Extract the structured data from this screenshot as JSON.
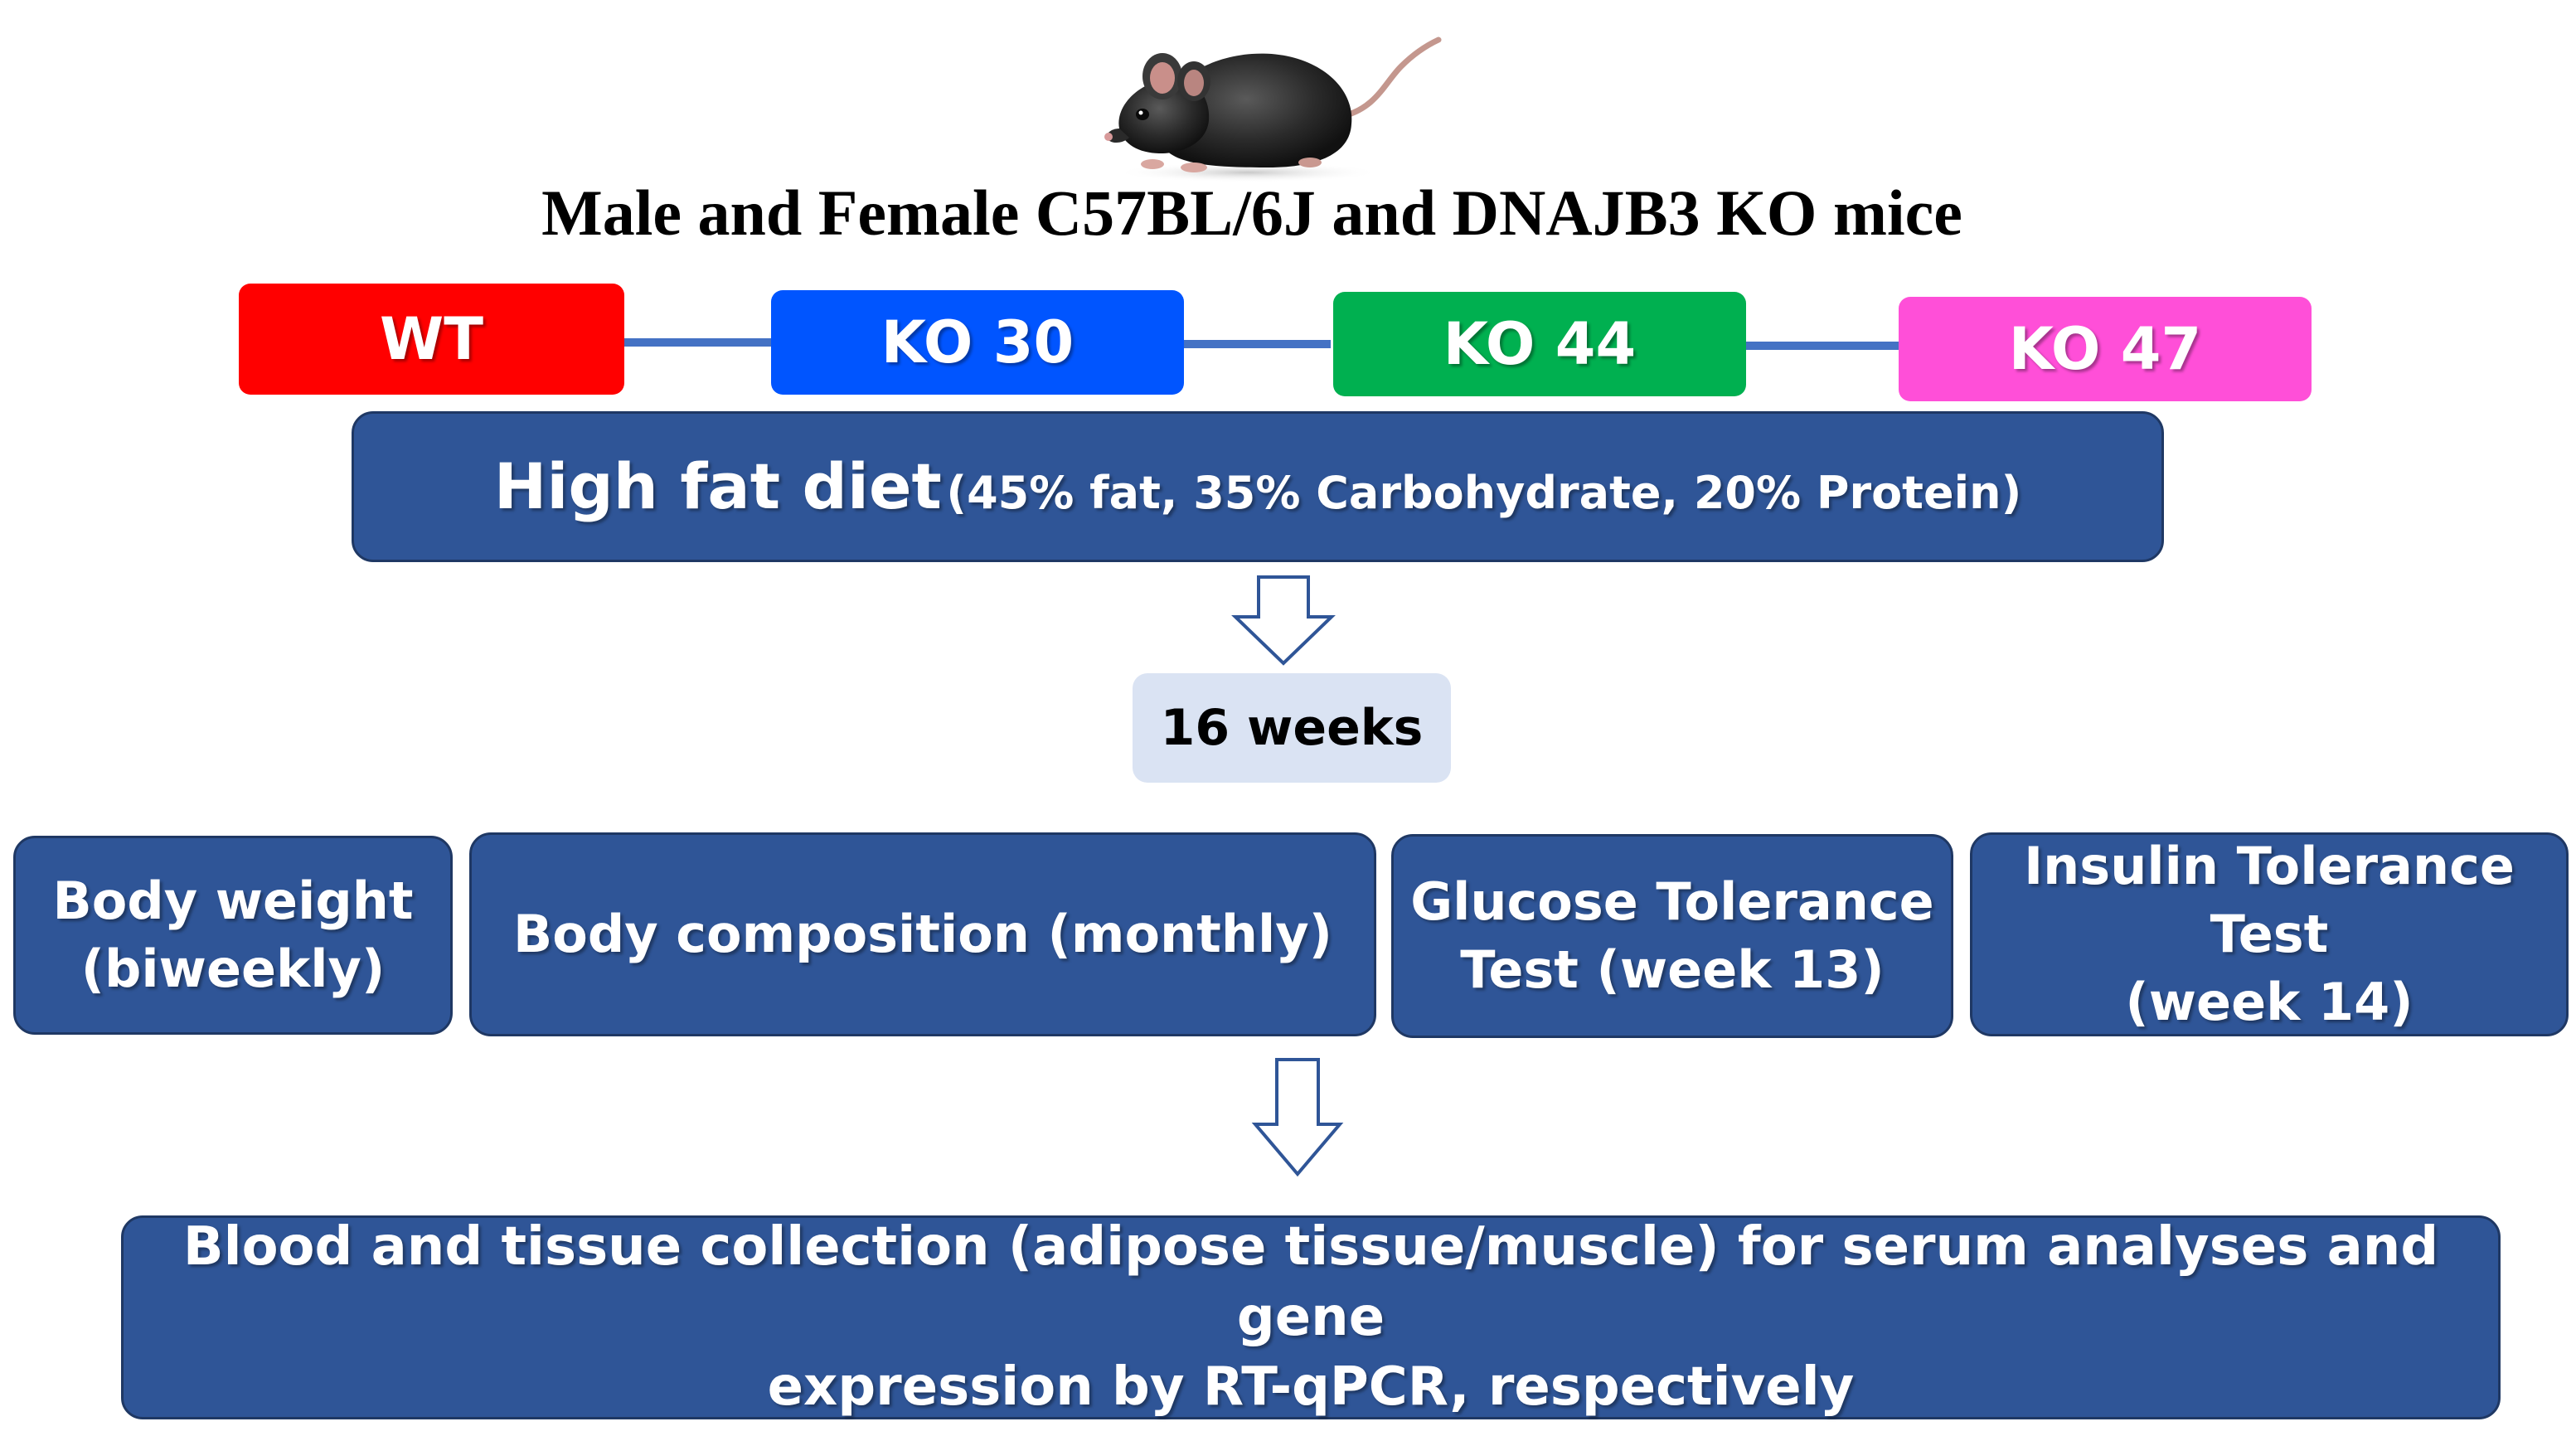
{
  "title": "Male and Female C57BL/6J and DNAJB3 KO mice",
  "image": {
    "icon": "mouse-icon",
    "description_name": "mouse"
  },
  "groups": [
    {
      "label": "WT",
      "color": "#ff0000"
    },
    {
      "label": "KO 30",
      "color": "#0055ff"
    },
    {
      "label": "KO 44",
      "color": "#00b050"
    },
    {
      "label": "KO 47",
      "color": "#ff4fd8"
    }
  ],
  "connector_color": "#4472c4",
  "diet": {
    "main": "High fat diet",
    "detail": "(45% fat, 35% Carbohydrate, 20% Protein)"
  },
  "duration": "16 weeks",
  "measurements": [
    {
      "line1": "Body weight",
      "line2": "(biweekly)"
    },
    {
      "line1": "Body composition (monthly)",
      "line2": ""
    },
    {
      "line1": "Glucose Tolerance",
      "line2": "Test (week 13)"
    },
    {
      "line1": "Insulin Tolerance Test",
      "line2": "(week 14)"
    }
  ],
  "final": {
    "line1": "Blood and tissue collection (adipose tissue/muscle) for serum analyses and gene",
    "line2": "expression by RT-qPCR, respectively"
  },
  "colors": {
    "box_fill": "#2f5597",
    "box_border": "#1f3864",
    "weeks_fill": "#dae3f3",
    "arrow_stroke": "#2f5597"
  }
}
